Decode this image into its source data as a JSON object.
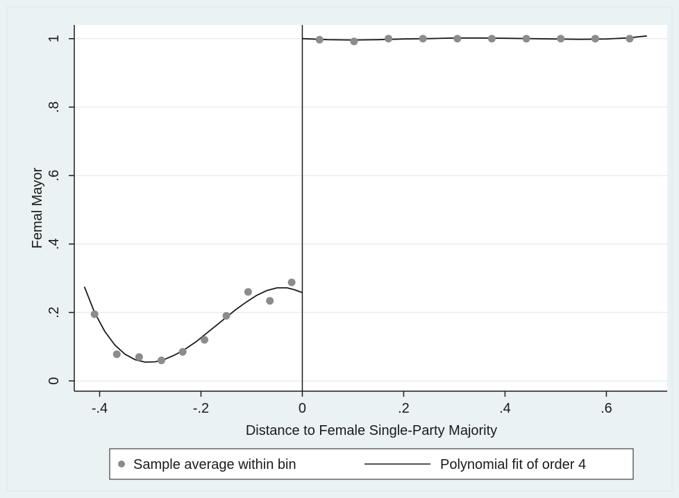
{
  "chart_data": {
    "type": "scatter",
    "xlabel": "Distance to Female Single-Party Majority",
    "ylabel": "Femal Mayor",
    "xlim": [
      -0.45,
      0.72
    ],
    "ylim": [
      -0.03,
      1.04
    ],
    "x_ticks": [
      -0.4,
      -0.2,
      0,
      0.2,
      0.4,
      0.6
    ],
    "x_tick_labels": [
      "-.4",
      "-.2",
      "0",
      ".2",
      ".4",
      ".6"
    ],
    "y_ticks": [
      0,
      0.2,
      0.4,
      0.6,
      0.8,
      1
    ],
    "y_tick_labels": [
      "0",
      ".2",
      ".4",
      ".6",
      ".8",
      "1"
    ],
    "grid": true,
    "cutoff": 0,
    "legend_position": "bottom",
    "colors": {
      "background": "#eaf2f3",
      "plot_background": "#ffffff",
      "grid": "#e8eef0",
      "points": "#8c8c8c",
      "line": "#1a1a1a"
    },
    "series": [
      {
        "name": "Sample average within bin",
        "type": "scatter",
        "points": [
          [
            -0.41,
            0.195
          ],
          [
            -0.366,
            0.078
          ],
          [
            -0.322,
            0.07
          ],
          [
            -0.278,
            0.06
          ],
          [
            -0.236,
            0.085
          ],
          [
            -0.193,
            0.12
          ],
          [
            -0.15,
            0.19
          ],
          [
            -0.107,
            0.26
          ],
          [
            -0.064,
            0.234
          ],
          [
            -0.021,
            0.288
          ],
          [
            0.034,
            0.997
          ],
          [
            0.102,
            0.992
          ],
          [
            0.17,
            1.0
          ],
          [
            0.238,
            1.0
          ],
          [
            0.306,
            1.0
          ],
          [
            0.374,
            1.0
          ],
          [
            0.442,
            1.0
          ],
          [
            0.51,
            1.0
          ],
          [
            0.578,
            1.0
          ],
          [
            0.646,
            1.0
          ]
        ]
      },
      {
        "name": "Polynomial fit of order 4",
        "type": "line",
        "segments": [
          [
            [
              -0.43,
              0.275
            ],
            [
              -0.41,
              0.2
            ],
            [
              -0.39,
              0.145
            ],
            [
              -0.37,
              0.105
            ],
            [
              -0.35,
              0.078
            ],
            [
              -0.33,
              0.062
            ],
            [
              -0.31,
              0.055
            ],
            [
              -0.29,
              0.056
            ],
            [
              -0.27,
              0.064
            ],
            [
              -0.25,
              0.077
            ],
            [
              -0.23,
              0.094
            ],
            [
              -0.21,
              0.114
            ],
            [
              -0.19,
              0.138
            ],
            [
              -0.17,
              0.162
            ],
            [
              -0.15,
              0.186
            ],
            [
              -0.13,
              0.21
            ],
            [
              -0.11,
              0.231
            ],
            [
              -0.09,
              0.25
            ],
            [
              -0.07,
              0.264
            ],
            [
              -0.05,
              0.272
            ],
            [
              -0.03,
              0.272
            ],
            [
              -0.015,
              0.266
            ],
            [
              0.0,
              0.258
            ]
          ],
          [
            [
              0.0,
              1.0
            ],
            [
              0.05,
              0.997
            ],
            [
              0.1,
              0.996
            ],
            [
              0.15,
              0.997
            ],
            [
              0.2,
              0.999
            ],
            [
              0.25,
              1.0
            ],
            [
              0.3,
              1.002
            ],
            [
              0.35,
              1.002
            ],
            [
              0.4,
              1.001
            ],
            [
              0.45,
              1.0
            ],
            [
              0.5,
              0.999
            ],
            [
              0.55,
              0.998
            ],
            [
              0.6,
              0.999
            ],
            [
              0.64,
              1.002
            ],
            [
              0.68,
              1.008
            ]
          ]
        ]
      }
    ]
  }
}
